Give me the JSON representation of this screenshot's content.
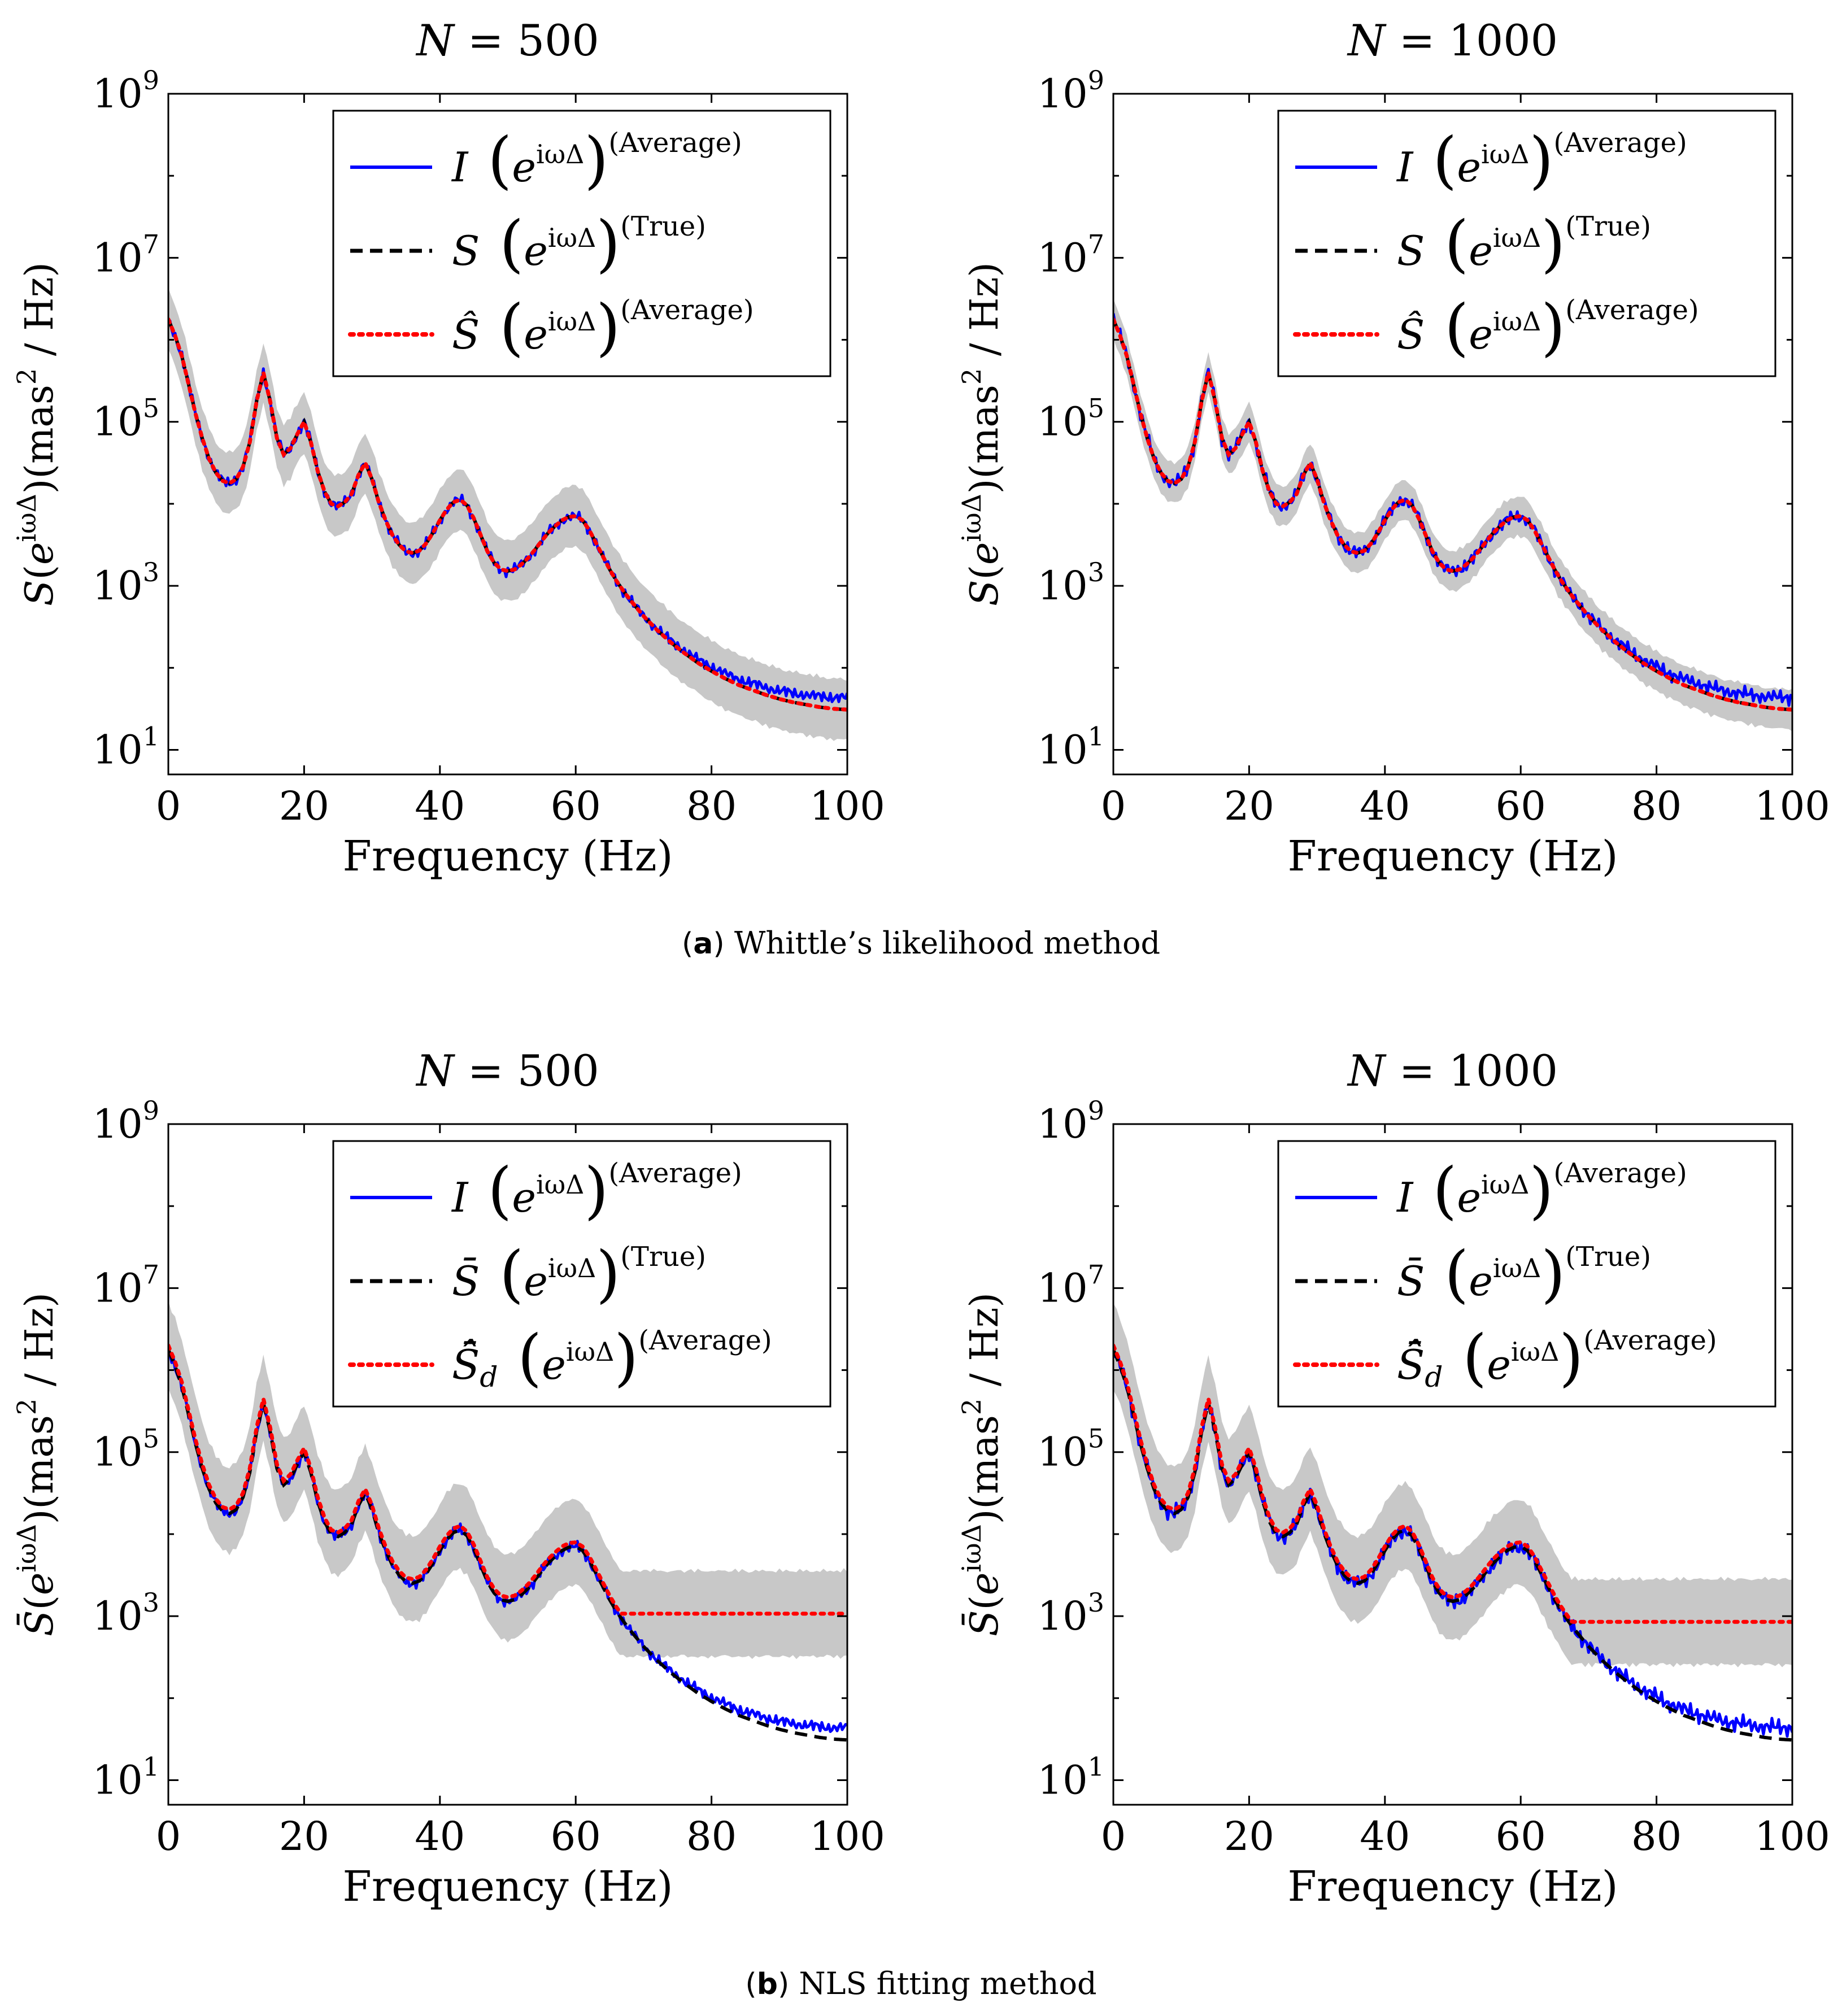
{
  "colors": {
    "measured": "#0000ff",
    "true": "#000000",
    "estimate": "#ff0000",
    "band": "#c8c8c8"
  },
  "captions": [
    {
      "letter": "a",
      "text": "Whittle’s likelihood method"
    },
    {
      "letter": "b",
      "text": "NLS fitting method"
    }
  ],
  "chart_data": [
    {
      "type": "line",
      "panel": "a-left",
      "title": "N = 500",
      "xlabel": "Frequency (Hz)",
      "ylabel": "S(e^{iωΔ})(mas² / Hz)",
      "ylabel_bar": false,
      "xlim": [
        0,
        100
      ],
      "ylim_log10": [
        0.7,
        9
      ],
      "xticks": [
        "0",
        "20",
        "40",
        "60",
        "80",
        "100"
      ],
      "yticks_exp": [
        "1",
        "3",
        "5",
        "7",
        "9"
      ],
      "legend_position": "top-right",
      "legend": [
        {
          "style": "solid",
          "sym": "I",
          "hat": false,
          "bar": false,
          "sub": "",
          "sup": "(Average)"
        },
        {
          "style": "dashed",
          "sym": "S",
          "hat": false,
          "bar": false,
          "sub": "",
          "sup": "(True)"
        },
        {
          "style": "dotted",
          "sym": "S",
          "hat": true,
          "bar": false,
          "sub": "",
          "sup": "(Average)"
        }
      ],
      "estimate_bias": "none",
      "band_width": 0.35,
      "noise_amp": 0.08
    },
    {
      "type": "line",
      "panel": "a-right",
      "title": "N = 1000",
      "xlabel": "Frequency (Hz)",
      "ylabel": "S(e^{iωΔ})(mas² / Hz)",
      "ylabel_bar": false,
      "xlim": [
        0,
        100
      ],
      "ylim_log10": [
        0.7,
        9
      ],
      "xticks": [
        "0",
        "20",
        "40",
        "60",
        "80",
        "100"
      ],
      "yticks_exp": [
        "1",
        "3",
        "5",
        "7",
        "9"
      ],
      "legend_position": "top-right",
      "legend": [
        {
          "style": "solid",
          "sym": "I",
          "hat": false,
          "bar": false,
          "sub": "",
          "sup": "(Average)"
        },
        {
          "style": "dashed",
          "sym": "S",
          "hat": false,
          "bar": false,
          "sub": "",
          "sup": "(True)"
        },
        {
          "style": "dotted",
          "sym": "S",
          "hat": true,
          "bar": false,
          "sub": "",
          "sup": "(Average)"
        }
      ],
      "estimate_bias": "none",
      "band_width": 0.22,
      "noise_amp": 0.1
    },
    {
      "type": "line",
      "panel": "b-left",
      "title": "N = 500",
      "xlabel": "Frequency (Hz)",
      "ylabel": "S̄(e^{iωΔ})(mas² / Hz)",
      "ylabel_bar": true,
      "xlim": [
        0,
        100
      ],
      "ylim_log10": [
        0.7,
        9
      ],
      "xticks": [
        "0",
        "20",
        "40",
        "60",
        "80",
        "100"
      ],
      "yticks_exp": [
        "1",
        "3",
        "5",
        "7",
        "9"
      ],
      "legend_position": "top-right",
      "legend": [
        {
          "style": "solid",
          "sym": "I",
          "hat": false,
          "bar": false,
          "sub": "",
          "sup": "(Average)"
        },
        {
          "style": "dashed",
          "sym": "S",
          "hat": false,
          "bar": true,
          "sub": "",
          "sup": "(True)"
        },
        {
          "style": "dotted",
          "sym": "S",
          "hat": true,
          "bar": true,
          "sub": "d",
          "sup": "(Average)"
        }
      ],
      "estimate_bias": "nls500",
      "band_width": 0.5,
      "noise_amp": 0.08
    },
    {
      "type": "line",
      "panel": "b-right",
      "title": "N = 1000",
      "xlabel": "Frequency (Hz)",
      "ylabel": "S̄(e^{iωΔ})(mas² / Hz)",
      "ylabel_bar": true,
      "xlim": [
        0,
        100
      ],
      "ylim_log10": [
        0.7,
        9
      ],
      "xticks": [
        "0",
        "20",
        "40",
        "60",
        "80",
        "100"
      ],
      "yticks_exp": [
        "1",
        "3",
        "5",
        "7",
        "9"
      ],
      "legend_position": "top-right",
      "legend": [
        {
          "style": "solid",
          "sym": "I",
          "hat": false,
          "bar": false,
          "sub": "",
          "sup": "(Average)"
        },
        {
          "style": "dashed",
          "sym": "S",
          "hat": false,
          "bar": true,
          "sub": "",
          "sup": "(True)"
        },
        {
          "style": "dotted",
          "sym": "S",
          "hat": true,
          "bar": true,
          "sub": "d",
          "sup": "(Average)"
        }
      ],
      "estimate_bias": "nls1000",
      "band_width": 0.5,
      "noise_amp": 0.12
    }
  ],
  "true_spectrum_log10": {
    "x": [
      0,
      1,
      2,
      3,
      4,
      5,
      6,
      7,
      8,
      9,
      10,
      11,
      12,
      13,
      14,
      15,
      16,
      17,
      18,
      19,
      20,
      21,
      22,
      23,
      24,
      25,
      26,
      27,
      28,
      29,
      30,
      31,
      32,
      33,
      34,
      35,
      36,
      37,
      38,
      39,
      40,
      41,
      42,
      43,
      44,
      45,
      46,
      47,
      48,
      49,
      50,
      51,
      52,
      53,
      54,
      55,
      56,
      57,
      58,
      59,
      60,
      61,
      62,
      63,
      64,
      65,
      66,
      67,
      68,
      69,
      70,
      72,
      74,
      76,
      78,
      80,
      82,
      84,
      86,
      88,
      90,
      92,
      94,
      96,
      98,
      100
    ],
    "y": [
      6.25,
      6.05,
      5.8,
      5.45,
      5.1,
      4.8,
      4.55,
      4.38,
      4.28,
      4.25,
      4.3,
      4.45,
      4.75,
      5.25,
      5.6,
      5.25,
      4.8,
      4.6,
      4.68,
      4.85,
      5.0,
      4.75,
      4.4,
      4.15,
      4.0,
      3.97,
      4.02,
      4.12,
      4.35,
      4.5,
      4.3,
      4.02,
      3.8,
      3.62,
      3.5,
      3.42,
      3.4,
      3.43,
      3.52,
      3.65,
      3.8,
      3.93,
      4.02,
      4.05,
      3.98,
      3.82,
      3.62,
      3.42,
      3.28,
      3.2,
      3.18,
      3.2,
      3.26,
      3.34,
      3.44,
      3.55,
      3.65,
      3.73,
      3.8,
      3.84,
      3.85,
      3.8,
      3.68,
      3.52,
      3.36,
      3.2,
      3.06,
      2.94,
      2.83,
      2.73,
      2.63,
      2.46,
      2.31,
      2.18,
      2.06,
      1.96,
      1.87,
      1.79,
      1.73,
      1.67,
      1.62,
      1.58,
      1.55,
      1.52,
      1.5,
      1.49
    ]
  }
}
